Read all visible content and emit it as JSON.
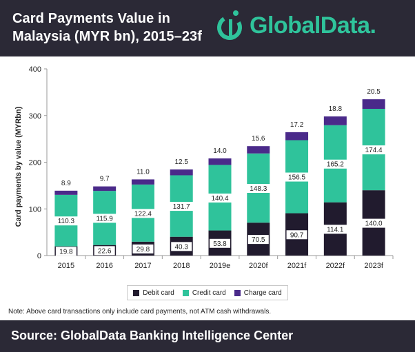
{
  "header": {
    "title_line1": "Card Payments Value in",
    "title_line2": "Malaysia (MYR bn), 2015–23f",
    "logo_text": "GlobalData."
  },
  "colors": {
    "header_bg": "#2b2936",
    "debit": "#211b2e",
    "credit": "#2fc39b",
    "charge": "#4a2a8a",
    "brand": "#2fc39b"
  },
  "chart_data": {
    "type": "bar",
    "stacked": true,
    "categories": [
      "2015",
      "2016",
      "2017",
      "2018",
      "2019e",
      "2020f",
      "2021f",
      "2022f",
      "2023f"
    ],
    "series": [
      {
        "name": "Debit card",
        "values": [
          19.8,
          22.6,
          29.8,
          40.3,
          53.8,
          70.5,
          90.7,
          114.1,
          140.0
        ]
      },
      {
        "name": "Credit card",
        "values": [
          110.3,
          115.9,
          122.4,
          131.7,
          140.4,
          148.3,
          156.5,
          165.2,
          174.4
        ]
      },
      {
        "name": "Charge card",
        "values": [
          8.9,
          9.7,
          11.0,
          12.5,
          14.0,
          15.6,
          17.2,
          18.8,
          20.5
        ]
      }
    ],
    "ylabel": "Card payments by value (MYRbn)",
    "xlabel": "",
    "ylim": [
      0,
      400
    ],
    "yticks": [
      0,
      100,
      200,
      300,
      400
    ],
    "grid": false,
    "legend_position": "bottom"
  },
  "legend": {
    "items": [
      {
        "label": "Debit card",
        "color": "#211b2e"
      },
      {
        "label": "Credit card",
        "color": "#2fc39b"
      },
      {
        "label": "Charge card",
        "color": "#4a2a8a"
      }
    ]
  },
  "note": "Note: Above card transactions only include card payments, not ATM cash withdrawals.",
  "footer": {
    "source": "Source: GlobalData Banking Intelligence Center"
  }
}
